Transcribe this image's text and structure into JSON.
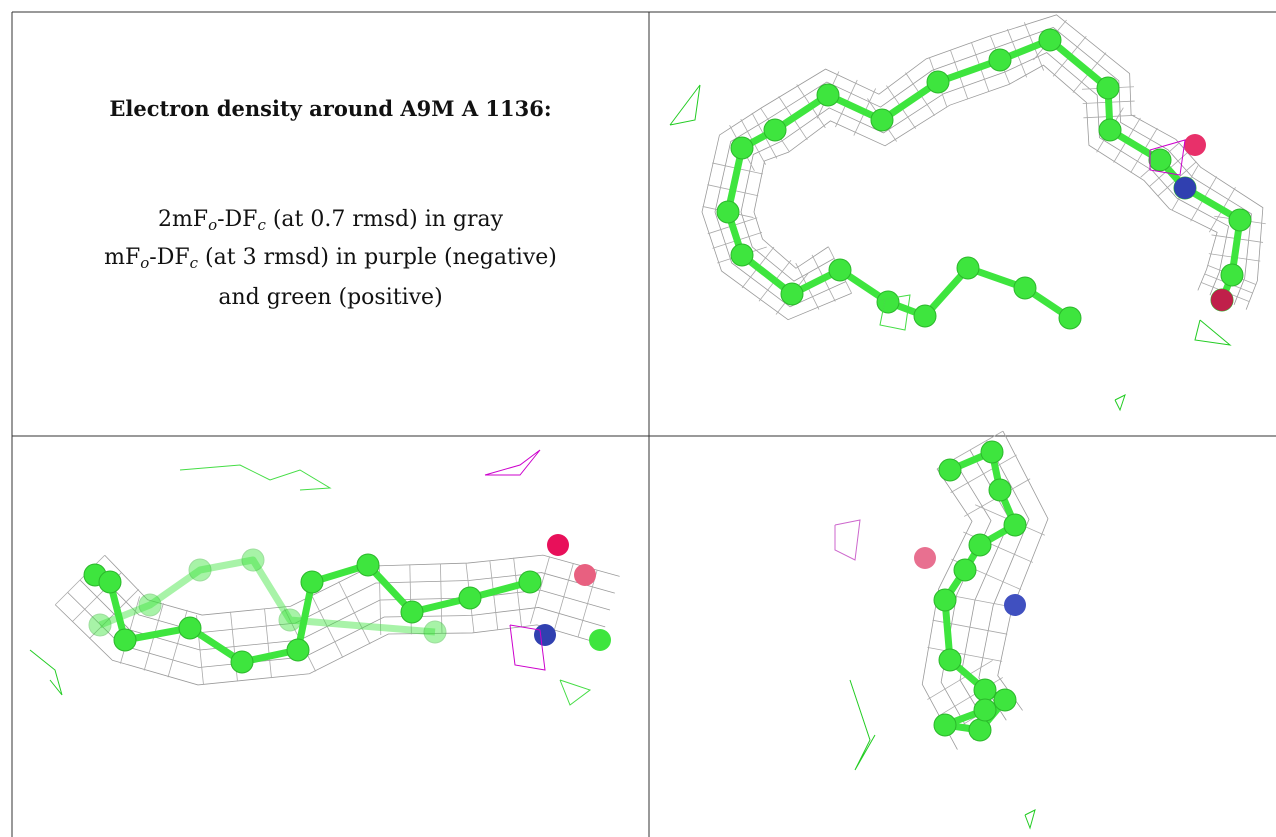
{
  "header": {
    "title": "Electron density around A9M A 1136:"
  },
  "legend": {
    "lines": [
      [
        "2mF",
        "o",
        "-DF",
        "c",
        " (at 0.7 rmsd) in gray"
      ],
      [
        "mF",
        "o",
        "-DF",
        "c",
        " (at 3 rmsd) in purple (negative)"
      ],
      [
        "and green (positive)"
      ]
    ]
  }
}
